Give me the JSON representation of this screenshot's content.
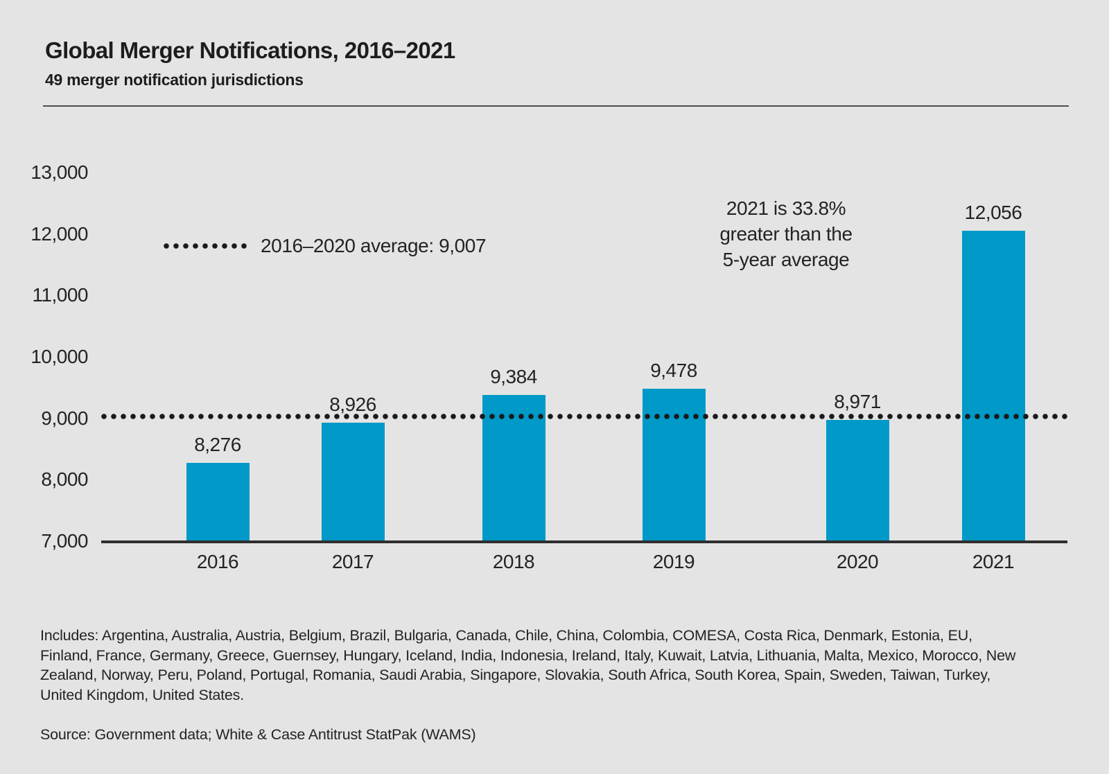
{
  "header": {
    "title": "Global Merger Notifications, 2016–2021",
    "subtitle": "49 merger notification jurisdictions"
  },
  "chart_data": {
    "type": "bar",
    "title": "Global Merger Notifications, 2016–2021",
    "subtitle": "49 merger notification jurisdictions",
    "categories": [
      "2016",
      "2017",
      "2018",
      "2019",
      "2020",
      "2021"
    ],
    "values": [
      8276,
      8926,
      9384,
      9478,
      8971,
      12056
    ],
    "value_labels": [
      "8,276",
      "8,926",
      "9,384",
      "9,478",
      "8,971",
      "12,056"
    ],
    "xlabel": "",
    "ylabel": "",
    "ylim": [
      7000,
      13000
    ],
    "ytick_step": 1000,
    "ytick_labels": [
      "7,000",
      "8,000",
      "9,000",
      "10,000",
      "11,000",
      "12,000",
      "13,000"
    ],
    "grid": "off",
    "legend_position": "upper-left-inside",
    "average_line": {
      "value": 9007,
      "style": "dotted",
      "color": "#1a1a1a",
      "legend_label": "2016–2020 average: 9,007"
    },
    "annotation": {
      "text": "2021 is 33.8%\ngreater than the\n5-year average"
    }
  },
  "footer": {
    "includes_note": "Includes: Argentina, Australia, Austria, Belgium, Brazil, Bulgaria, Canada, Chile, China, Colombia, COMESA, Costa Rica, Denmark, Estonia, EU, Finland, France, Germany, Greece, Guernsey, Hungary, Iceland, India, Indonesia, Ireland, Italy, Kuwait, Latvia, Lithuania, Malta, Mexico, Morocco, New Zealand, Norway, Peru, Poland, Portugal, Romania, Saudi Arabia, Singapore, Slovakia, South Africa, South Korea, Spain, Sweden, Taiwan, Turkey, United Kingdom, United States.",
    "source": "Source: Government data; White & Case Antitrust StatPak (WAMS)"
  },
  "colors": {
    "background": "#e4e4e4",
    "bar": "#0099c8",
    "axis": "#2e2e2e",
    "text": "#232323",
    "dotted_line": "#1a1a1a"
  }
}
